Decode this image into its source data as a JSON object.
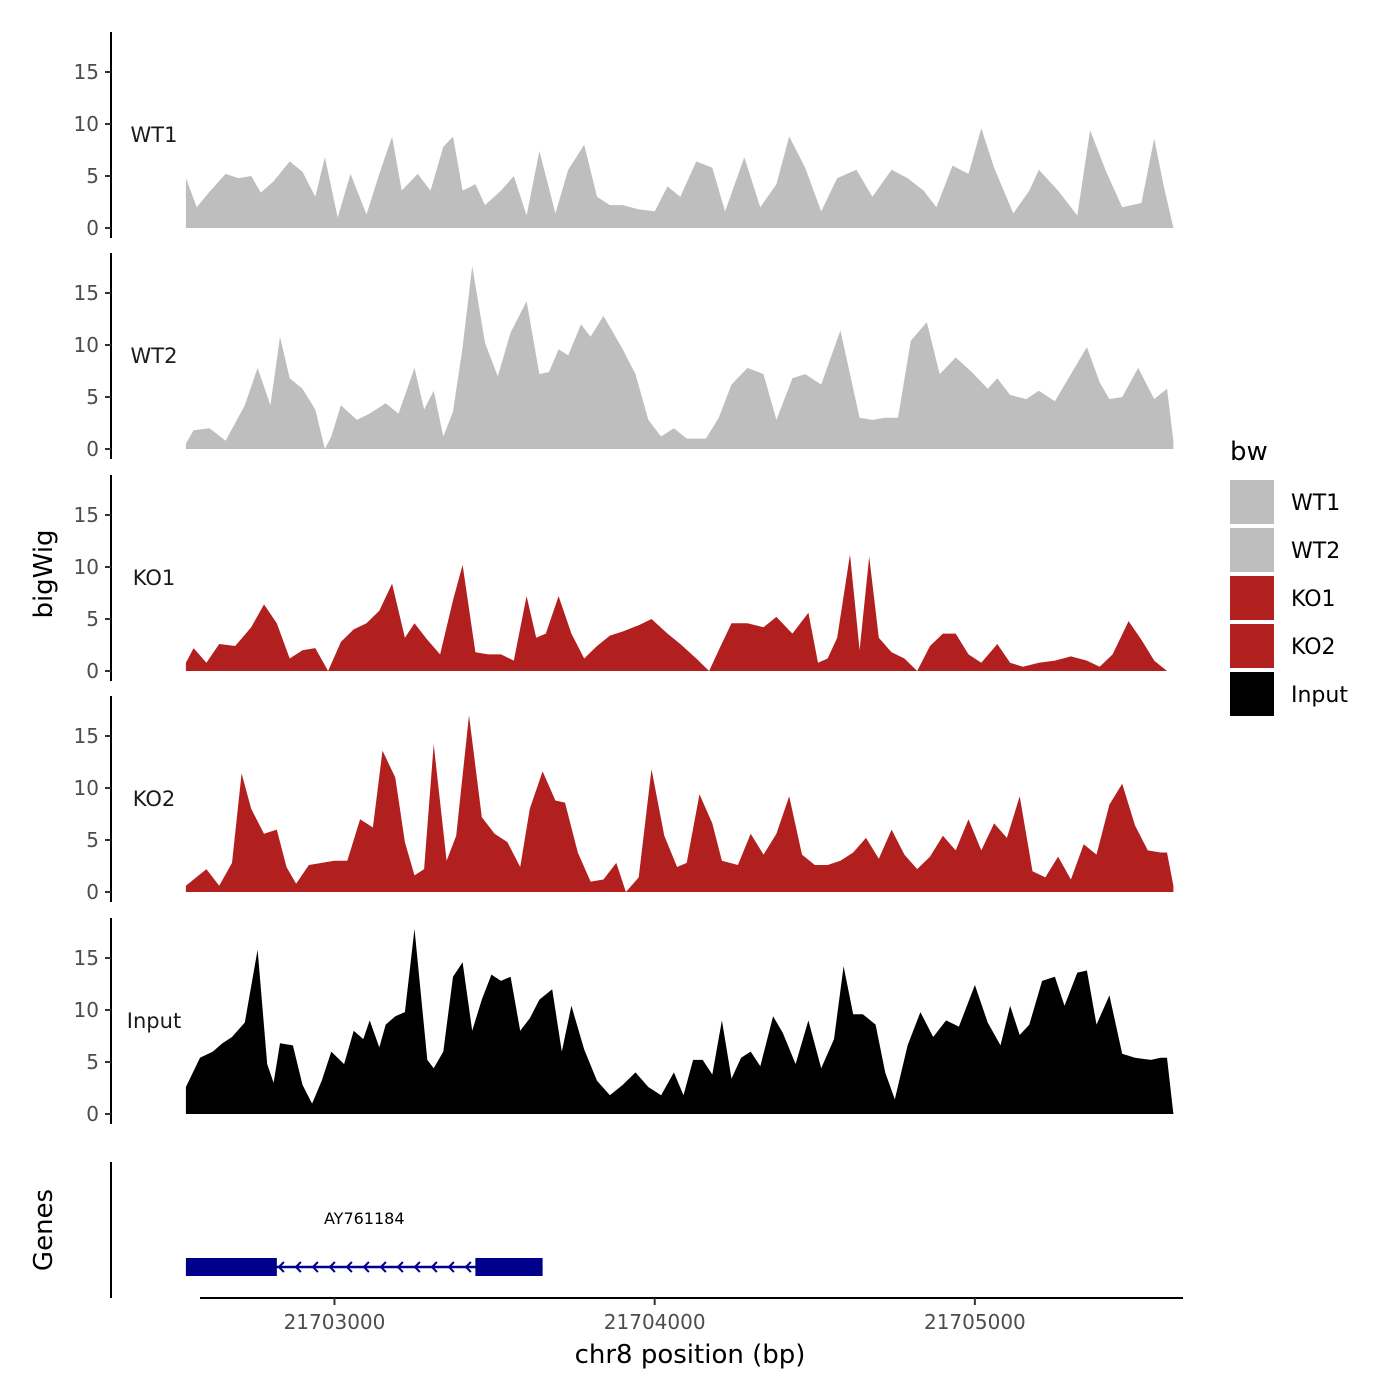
{
  "chart_data": {
    "type": "area",
    "chromosome": "chr8",
    "xlabel": "chr8 position (bp)",
    "ylabel": "bigWig",
    "genes_label": "Genes",
    "xlim": [
      21702580,
      21705650
    ],
    "x_ticks": [
      21703000,
      21704000,
      21705000
    ],
    "x_tick_labels": [
      "21703000",
      "21704000",
      "21705000"
    ],
    "ylim": [
      0,
      19
    ],
    "y_ticks": [
      0,
      5,
      10,
      15
    ],
    "y_tick_labels": [
      "0",
      "5",
      "10",
      "15"
    ],
    "legend": {
      "title": "bw",
      "entries": [
        {
          "label": "WT1",
          "color": "#bebebe"
        },
        {
          "label": "WT2",
          "color": "#bebebe"
        },
        {
          "label": "KO1",
          "color": "#b21f1f"
        },
        {
          "label": "KO2",
          "color": "#b21f1f"
        },
        {
          "label": "Input",
          "color": "#000000"
        }
      ]
    },
    "series": [
      {
        "name": "WT1",
        "color": "#bebebe",
        "x": [
          21702536,
          21702570,
          21702610,
          21702660,
          21702700,
          21702740,
          21702770,
          21702810,
          21702860,
          21702900,
          21702940,
          21702970,
          21703010,
          21703050,
          21703100,
          21703140,
          21703180,
          21703210,
          21703260,
          21703300,
          21703340,
          21703370,
          21703400,
          21703440,
          21703470,
          21703520,
          21703560,
          21703600,
          21703640,
          21703690,
          21703730,
          21703780,
          21703820,
          21703860,
          21703900,
          21703950,
          21704000,
          21704040,
          21704080,
          21704130,
          21704180,
          21704220,
          21704280,
          21704330,
          21704380,
          21704420,
          21704470,
          21704520,
          21704570,
          21704630,
          21704680,
          21704740,
          21704790,
          21704840,
          21704880,
          21704930,
          21704980,
          21705020,
          21705060,
          21705120,
          21705170,
          21705200,
          21705260,
          21705320,
          21705360,
          21705410,
          21705460,
          21705520,
          21705560,
          21705590,
          21705620
        ],
        "values": [
          4.8,
          2.0,
          3.5,
          5.2,
          4.8,
          5.0,
          3.4,
          4.5,
          6.4,
          5.4,
          3.0,
          6.8,
          1.0,
          5.2,
          1.3,
          5.2,
          8.8,
          3.6,
          5.2,
          3.6,
          7.8,
          8.8,
          3.6,
          4.2,
          2.2,
          3.6,
          5.0,
          1.2,
          7.4,
          1.4,
          5.6,
          8.0,
          3.0,
          2.2,
          2.2,
          1.8,
          1.6,
          4.0,
          3.0,
          6.4,
          5.8,
          1.6,
          6.8,
          2.0,
          4.2,
          8.8,
          5.8,
          1.6,
          4.8,
          5.6,
          3.0,
          5.6,
          4.8,
          3.6,
          2.0,
          6.0,
          5.2,
          9.6,
          5.8,
          1.4,
          3.6,
          5.6,
          3.6,
          1.2,
          9.4,
          5.4,
          2.0,
          2.4,
          8.6,
          4.0,
          0.0
        ]
      },
      {
        "name": "WT2",
        "color": "#bebebe",
        "x": [
          21702536,
          21702560,
          21702610,
          21702660,
          21702720,
          21702760,
          21702800,
          21702830,
          21702860,
          21702900,
          21702940,
          21702970,
          21702990,
          21703020,
          21703070,
          21703110,
          21703160,
          21703200,
          21703250,
          21703280,
          21703310,
          21703340,
          21703370,
          21703400,
          21703430,
          21703470,
          21703510,
          21703550,
          21703600,
          21703640,
          21703670,
          21703700,
          21703730,
          21703770,
          21703800,
          21703840,
          21703870,
          21703900,
          21703940,
          21703980,
          21704020,
          21704060,
          21704100,
          21704160,
          21704200,
          21704240,
          21704290,
          21704340,
          21704380,
          21704430,
          21704470,
          21704520,
          21704580,
          21704640,
          21704680,
          21704720,
          21704760,
          21704800,
          21704850,
          21704890,
          21704940,
          21704990,
          21705040,
          21705070,
          21705110,
          21705160,
          21705200,
          21705250,
          21705300,
          21705350,
          21705390,
          21705420,
          21705460,
          21705510,
          21705560,
          21705600,
          21705620
        ],
        "values": [
          0.5,
          1.8,
          2.0,
          0.8,
          4.2,
          7.8,
          4.2,
          10.8,
          6.8,
          5.8,
          3.8,
          0.0,
          1.2,
          4.2,
          2.8,
          3.4,
          4.4,
          3.4,
          7.8,
          3.8,
          5.6,
          1.2,
          3.6,
          9.8,
          17.6,
          10.2,
          7.0,
          11.2,
          14.2,
          7.2,
          7.4,
          9.6,
          9.0,
          12.0,
          10.8,
          12.8,
          11.2,
          9.6,
          7.2,
          2.8,
          1.2,
          2.0,
          1.0,
          1.0,
          3.0,
          6.2,
          7.8,
          7.2,
          2.8,
          6.8,
          7.2,
          6.2,
          11.4,
          3.0,
          2.8,
          3.0,
          3.0,
          10.4,
          12.2,
          7.2,
          8.8,
          7.4,
          5.8,
          6.8,
          5.2,
          4.8,
          5.6,
          4.6,
          7.2,
          9.8,
          6.4,
          4.8,
          5.0,
          7.8,
          4.8,
          5.8,
          0.8
        ]
      },
      {
        "name": "KO1",
        "color": "#b21f1f",
        "x": [
          21702536,
          21702560,
          21702600,
          21702640,
          21702690,
          21702740,
          21702780,
          21702820,
          21702860,
          21702900,
          21702940,
          21702980,
          21703020,
          21703060,
          21703100,
          21703140,
          21703180,
          21703220,
          21703250,
          21703290,
          21703330,
          21703370,
          21703400,
          21703440,
          21703480,
          21703520,
          21703560,
          21703600,
          21703630,
          21703660,
          21703700,
          21703740,
          21703780,
          21703820,
          21703860,
          21703900,
          21703950,
          21703990,
          21704040,
          21704080,
          21704130,
          21704170,
          21704200,
          21704240,
          21704290,
          21704340,
          21704380,
          21704430,
          21704480,
          21704510,
          21704540,
          21704570,
          21704610,
          21704640,
          21704670,
          21704700,
          21704740,
          21704780,
          21704820,
          21704860,
          21704900,
          21704940,
          21704980,
          21705020,
          21705070,
          21705110,
          21705150,
          21705200,
          21705250,
          21705300,
          21705350,
          21705390,
          21705430,
          21705480,
          21705520,
          21705560,
          21705600,
          21705620
        ],
        "values": [
          0.8,
          2.2,
          0.8,
          2.6,
          2.4,
          4.2,
          6.4,
          4.6,
          1.2,
          2.0,
          2.2,
          0.0,
          2.8,
          4.0,
          4.6,
          5.8,
          8.4,
          3.2,
          4.6,
          3.0,
          1.6,
          6.8,
          10.2,
          1.8,
          1.6,
          1.6,
          1.0,
          7.2,
          3.2,
          3.6,
          7.2,
          3.6,
          1.2,
          2.4,
          3.4,
          3.8,
          4.4,
          5.0,
          3.6,
          2.6,
          1.2,
          0.0,
          2.0,
          4.6,
          4.6,
          4.2,
          5.2,
          3.6,
          5.6,
          0.8,
          1.2,
          3.2,
          11.2,
          2.0,
          11.0,
          3.2,
          1.8,
          1.2,
          0.0,
          2.4,
          3.6,
          3.6,
          1.6,
          0.8,
          2.6,
          0.8,
          0.4,
          0.8,
          1.0,
          1.4,
          1.0,
          0.4,
          1.6,
          4.8,
          3.0,
          1.0,
          0.0,
          0.0
        ]
      },
      {
        "name": "KO2",
        "color": "#b21f1f",
        "x": [
          21702536,
          21702560,
          21702600,
          21702640,
          21702680,
          21702710,
          21702740,
          21702780,
          21702820,
          21702850,
          21702880,
          21702920,
          21702960,
          21703000,
          21703040,
          21703080,
          21703120,
          21703150,
          21703190,
          21703220,
          21703250,
          21703280,
          21703310,
          21703350,
          21703380,
          21703420,
          21703460,
          21703500,
          21703540,
          21703580,
          21703610,
          21703650,
          21703690,
          21703720,
          21703760,
          21703800,
          21703840,
          21703880,
          21703910,
          21703950,
          21703990,
          21704030,
          21704070,
          21704100,
          21704140,
          21704180,
          21704210,
          21704260,
          21704300,
          21704340,
          21704380,
          21704420,
          21704460,
          21704500,
          21704540,
          21704580,
          21704620,
          21704660,
          21704700,
          21704740,
          21704780,
          21704820,
          21704860,
          21704900,
          21704940,
          21704980,
          21705020,
          21705060,
          21705100,
          21705140,
          21705180,
          21705220,
          21705260,
          21705300,
          21705340,
          21705380,
          21705420,
          21705460,
          21705500,
          21705540,
          21705580,
          21705600,
          21705620
        ],
        "values": [
          0.6,
          1.2,
          2.2,
          0.6,
          2.8,
          11.4,
          8.0,
          5.6,
          6.0,
          2.4,
          0.8,
          2.6,
          2.8,
          3.0,
          3.0,
          7.0,
          6.2,
          13.6,
          11.0,
          4.8,
          1.6,
          2.2,
          14.2,
          3.0,
          5.4,
          17.0,
          7.2,
          5.6,
          4.8,
          2.4,
          8.0,
          11.6,
          8.8,
          8.6,
          3.8,
          1.0,
          1.2,
          2.8,
          0.0,
          1.4,
          11.8,
          5.4,
          2.4,
          2.8,
          9.4,
          6.6,
          3.0,
          2.6,
          5.6,
          3.6,
          5.6,
          9.2,
          3.6,
          2.6,
          2.6,
          3.0,
          3.8,
          5.2,
          3.2,
          6.0,
          3.6,
          2.2,
          3.4,
          5.4,
          4.0,
          7.0,
          4.0,
          6.6,
          5.2,
          9.2,
          2.0,
          1.4,
          3.4,
          1.2,
          4.6,
          3.6,
          8.4,
          10.4,
          6.4,
          4.0,
          3.8,
          3.8,
          0.6
        ]
      },
      {
        "name": "Input",
        "color": "#000000",
        "x": [
          21702536,
          21702580,
          21702620,
          21702650,
          21702680,
          21702720,
          21702760,
          21702790,
          21702810,
          21702830,
          21702870,
          21702900,
          21702930,
          21702960,
          21702990,
          21703030,
          21703060,
          21703090,
          21703110,
          21703140,
          21703160,
          21703190,
          21703220,
          21703250,
          21703290,
          21703310,
          21703340,
          21703370,
          21703400,
          21703430,
          21703460,
          21703490,
          21703520,
          21703550,
          21703580,
          21703610,
          21703640,
          21703680,
          21703710,
          21703740,
          21703780,
          21703820,
          21703860,
          21703900,
          21703940,
          21703980,
          21704020,
          21704060,
          21704090,
          21704120,
          21704150,
          21704180,
          21704210,
          21704240,
          21704270,
          21704300,
          21704330,
          21704370,
          21704400,
          21704440,
          21704480,
          21704520,
          21704560,
          21704590,
          21704620,
          21704650,
          21704690,
          21704720,
          21704750,
          21704790,
          21704830,
          21704870,
          21704910,
          21704950,
          21705000,
          21705040,
          21705080,
          21705110,
          21705140,
          21705170,
          21705210,
          21705250,
          21705280,
          21705320,
          21705350,
          21705380,
          21705420,
          21705460,
          21705500,
          21705550,
          21705580,
          21705600,
          21705620
        ],
        "values": [
          2.6,
          5.4,
          6.0,
          6.8,
          7.4,
          8.8,
          15.8,
          4.8,
          3.0,
          6.8,
          6.6,
          2.8,
          1.0,
          3.2,
          6.0,
          4.8,
          8.0,
          7.2,
          9.0,
          6.4,
          8.6,
          9.4,
          9.8,
          17.8,
          5.2,
          4.4,
          6.0,
          13.2,
          14.6,
          8.0,
          11.0,
          13.4,
          12.8,
          13.2,
          8.0,
          9.2,
          11.0,
          12.0,
          6.0,
          10.4,
          6.2,
          3.2,
          1.8,
          2.8,
          4.0,
          2.6,
          1.8,
          4.0,
          1.8,
          5.2,
          5.2,
          3.8,
          9.0,
          3.4,
          5.4,
          6.0,
          4.6,
          9.4,
          7.8,
          4.8,
          9.0,
          4.4,
          7.2,
          14.2,
          9.6,
          9.6,
          8.6,
          4.0,
          1.4,
          6.6,
          9.8,
          7.4,
          9.0,
          8.4,
          12.4,
          8.8,
          6.6,
          10.4,
          7.6,
          8.6,
          12.8,
          13.2,
          10.4,
          13.6,
          13.8,
          8.6,
          11.4,
          5.8,
          5.4,
          5.2,
          5.4,
          5.4,
          0.0
        ]
      }
    ],
    "genes": [
      {
        "name": "AY761184",
        "color": "#00008b",
        "strand": "-",
        "start": 21702536,
        "end": 21703650,
        "exons": [
          [
            21702536,
            21702820
          ],
          [
            21703440,
            21703650
          ]
        ]
      }
    ]
  }
}
